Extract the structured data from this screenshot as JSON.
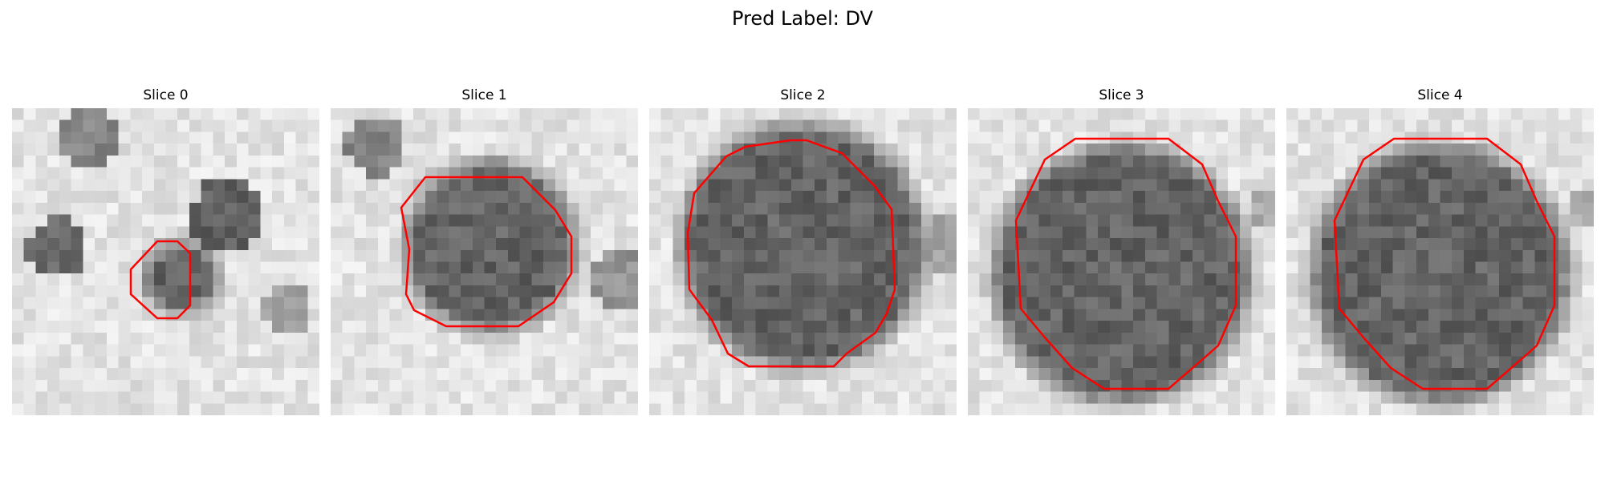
{
  "figure": {
    "title": "Pred Label: DV"
  },
  "panels": [
    {
      "label": "Slice 0",
      "outline_color": "#ff0000"
    },
    {
      "label": "Slice 1",
      "outline_color": "#ff0000"
    },
    {
      "label": "Slice 2",
      "outline_color": "#ff0000"
    },
    {
      "label": "Slice 3",
      "outline_color": "#ff0000"
    },
    {
      "label": "Slice 4",
      "outline_color": "#ff0000"
    }
  ],
  "colors": {
    "background": "#ffffff",
    "outline": "#ff0000"
  }
}
